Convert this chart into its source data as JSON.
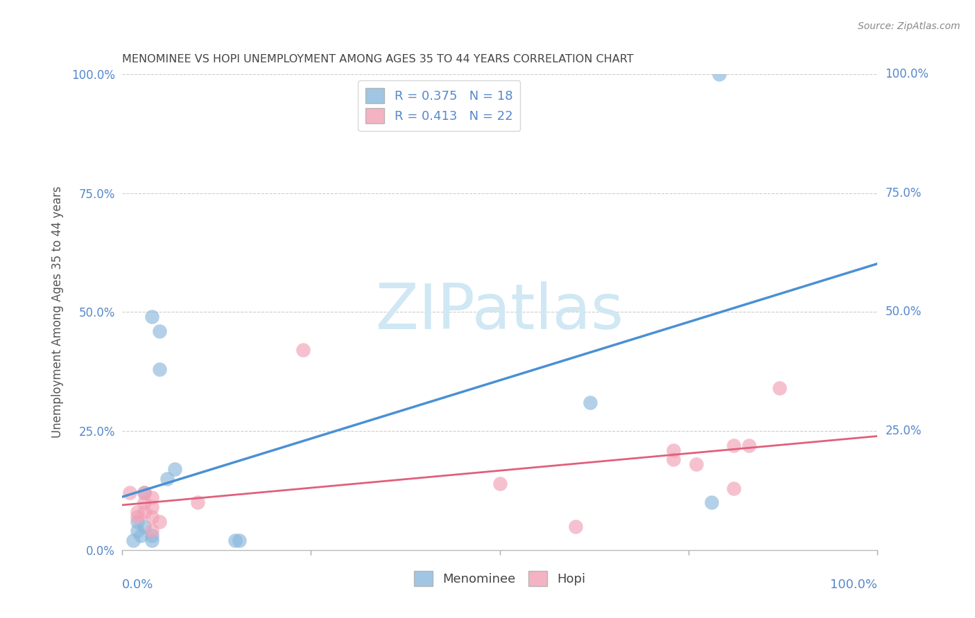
{
  "title": "MENOMINEE VS HOPI UNEMPLOYMENT AMONG AGES 35 TO 44 YEARS CORRELATION CHART",
  "source": "Source: ZipAtlas.com",
  "ylabel": "Unemployment Among Ages 35 to 44 years",
  "ytick_labels": [
    "0.0%",
    "25.0%",
    "50.0%",
    "75.0%",
    "100.0%"
  ],
  "ytick_values": [
    0.0,
    0.25,
    0.5,
    0.75,
    1.0
  ],
  "xlim": [
    0,
    1.0
  ],
  "ylim": [
    0,
    1.0
  ],
  "menominee_color": "#8ab8dc",
  "hopi_color": "#f2a0b5",
  "menominee_line_color": "#4a90d4",
  "hopi_line_color": "#e0607a",
  "axis_color": "#5588cc",
  "title_color": "#444444",
  "source_color": "#888888",
  "grid_color": "#cccccc",
  "background_color": "#ffffff",
  "watermark_color": "#d0e8f4",
  "menominee_x": [
    0.015,
    0.02,
    0.02,
    0.025,
    0.03,
    0.03,
    0.04,
    0.04,
    0.04,
    0.05,
    0.05,
    0.06,
    0.07,
    0.15,
    0.155,
    0.62,
    0.78,
    0.79
  ],
  "menominee_y": [
    0.02,
    0.04,
    0.06,
    0.03,
    0.05,
    0.12,
    0.02,
    0.03,
    0.49,
    0.38,
    0.46,
    0.15,
    0.17,
    0.02,
    0.02,
    0.31,
    0.1,
    1.0
  ],
  "hopi_x": [
    0.01,
    0.02,
    0.02,
    0.03,
    0.03,
    0.03,
    0.04,
    0.04,
    0.04,
    0.04,
    0.05,
    0.1,
    0.24,
    0.5,
    0.6,
    0.73,
    0.73,
    0.76,
    0.81,
    0.81,
    0.83,
    0.87
  ],
  "hopi_y": [
    0.12,
    0.07,
    0.08,
    0.08,
    0.1,
    0.12,
    0.04,
    0.07,
    0.09,
    0.11,
    0.06,
    0.1,
    0.42,
    0.14,
    0.05,
    0.19,
    0.21,
    0.18,
    0.13,
    0.22,
    0.22,
    0.34
  ]
}
